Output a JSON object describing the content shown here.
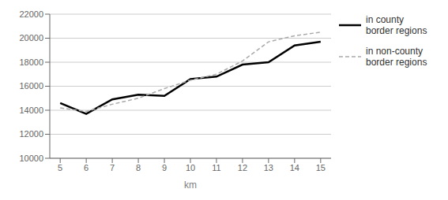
{
  "chart_data": {
    "type": "line",
    "x": [
      5,
      6,
      7,
      8,
      9,
      10,
      11,
      12,
      13,
      14,
      15
    ],
    "series": [
      {
        "name": "in county\nborder regions",
        "color": "#000000",
        "line_style": "solid",
        "values": [
          14600,
          13700,
          14900,
          15300,
          15200,
          16600,
          16800,
          17800,
          18000,
          19400,
          19700
        ]
      },
      {
        "name": "in non-county\nborder regions",
        "color": "#aaaaaa",
        "line_style": "dashed",
        "values": [
          14200,
          13900,
          14500,
          15000,
          15800,
          16500,
          17000,
          18100,
          19700,
          20200,
          20500
        ]
      }
    ],
    "xlabel": "km",
    "xlim": [
      4.6,
      15.4
    ],
    "xticks": [
      5,
      6,
      7,
      8,
      9,
      10,
      11,
      12,
      13,
      14,
      15
    ],
    "ylim": [
      10000,
      22000
    ],
    "yticks": [
      10000,
      12000,
      14000,
      16000,
      18000,
      20000,
      22000
    ],
    "grid": "y",
    "legend": "right"
  }
}
